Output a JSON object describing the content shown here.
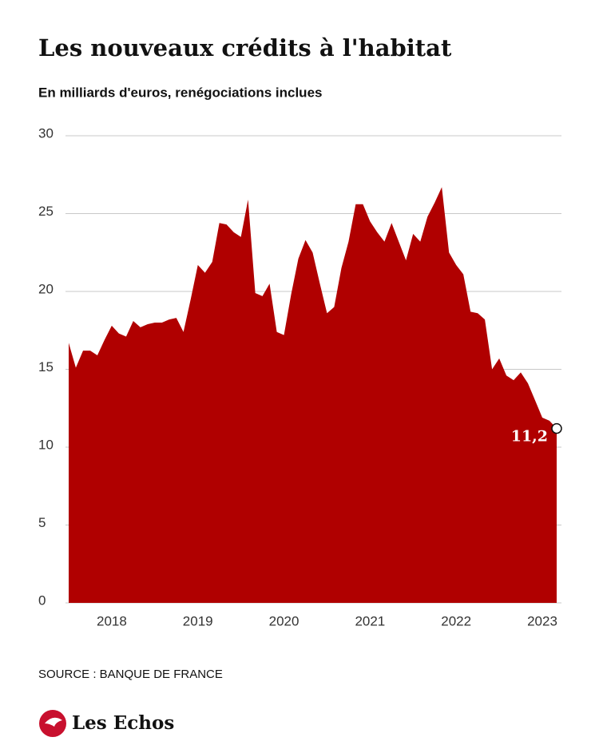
{
  "chart_data": {
    "type": "area",
    "title": "Les nouveaux crédits à l'habitat",
    "subtitle": "En milliards d'euros, renégociations inclues",
    "source": "SOURCE : BANQUE DE FRANCE",
    "brand": "Les Echos",
    "x": [
      2017.5,
      2017.583,
      2017.667,
      2017.75,
      2017.833,
      2017.917,
      2018.0,
      2018.083,
      2018.167,
      2018.25,
      2018.333,
      2018.417,
      2018.5,
      2018.583,
      2018.667,
      2018.75,
      2018.833,
      2018.917,
      2019.0,
      2019.083,
      2019.167,
      2019.25,
      2019.333,
      2019.417,
      2019.5,
      2019.583,
      2019.667,
      2019.75,
      2019.833,
      2019.917,
      2020.0,
      2020.083,
      2020.167,
      2020.25,
      2020.333,
      2020.417,
      2020.5,
      2020.583,
      2020.667,
      2020.75,
      2020.833,
      2020.917,
      2021.0,
      2021.083,
      2021.167,
      2021.25,
      2021.333,
      2021.417,
      2021.5,
      2021.583,
      2021.667,
      2021.75,
      2021.833,
      2021.917,
      2022.0,
      2022.083,
      2022.167,
      2022.25,
      2022.333,
      2022.417,
      2022.5,
      2022.583,
      2022.667,
      2022.75,
      2022.833,
      2022.917,
      2023.0,
      2023.083,
      2023.167
    ],
    "series": [
      {
        "color": "#b00000",
        "values": [
          16.7,
          15.1,
          16.2,
          16.2,
          15.9,
          16.9,
          17.8,
          17.3,
          17.1,
          18.1,
          17.7,
          17.9,
          18.0,
          18.0,
          18.2,
          18.3,
          17.4,
          19.5,
          21.7,
          21.2,
          21.9,
          24.4,
          24.3,
          23.8,
          23.5,
          25.9,
          19.9,
          19.7,
          20.5,
          17.4,
          17.2,
          19.8,
          22.1,
          23.3,
          22.5,
          20.5,
          18.6,
          19.0,
          21.5,
          23.2,
          25.6,
          25.6,
          24.5,
          23.8,
          23.2,
          24.4,
          23.2,
          22.0,
          23.7,
          23.2,
          24.8,
          25.7,
          26.7,
          22.5,
          21.7,
          21.1,
          18.7,
          18.6,
          18.2,
          15.0,
          15.7,
          14.6,
          14.3,
          14.8,
          14.1,
          13.0,
          11.9,
          11.7,
          11.2
        ],
        "value_labels": [
          null,
          null,
          null,
          null,
          null,
          null,
          null,
          null,
          null,
          null,
          null,
          null,
          null,
          null,
          null,
          null,
          null,
          null,
          null,
          null,
          null,
          null,
          null,
          null,
          null,
          null,
          null,
          null,
          null,
          null,
          null,
          null,
          null,
          null,
          null,
          null,
          null,
          null,
          null,
          null,
          null,
          null,
          null,
          null,
          null,
          null,
          null,
          null,
          null,
          null,
          null,
          null,
          null,
          null,
          null,
          null,
          null,
          null,
          null,
          null,
          null,
          null,
          null,
          null,
          null,
          null,
          null,
          null,
          "11,2"
        ]
      }
    ],
    "xlim": [
      2017.5,
      2023.167
    ],
    "xticks": [
      2018,
      2019,
      2020,
      2021,
      2022,
      2023
    ],
    "ylim": [
      0,
      30
    ],
    "yticks": [
      0,
      5,
      10,
      15,
      20,
      25,
      30
    ],
    "grid": true
  }
}
